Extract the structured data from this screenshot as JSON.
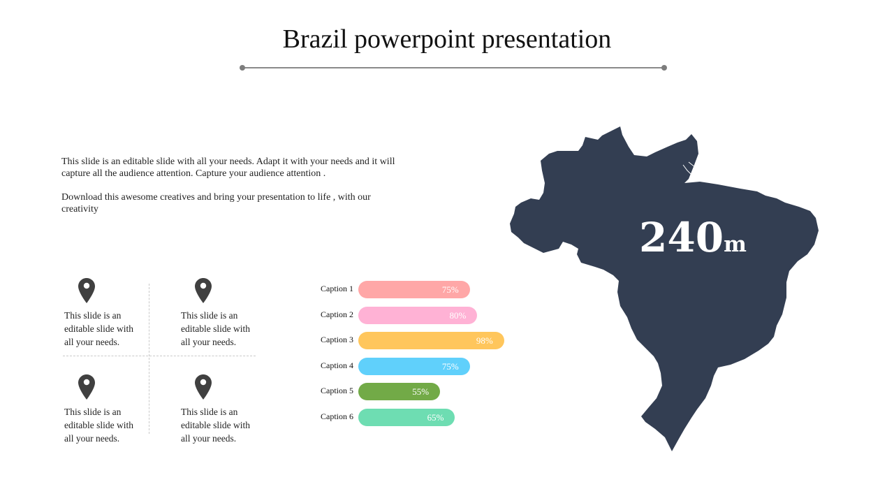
{
  "title": "Brazil powerpoint presentation",
  "intro": {
    "paragraph1": "This slide is an editable slide with all your needs. Adapt it with your needs and it will capture all the audience attention. Capture your audience attention .",
    "paragraph2": "Download this awesome creatives and bring your presentation to life , with our creativity"
  },
  "grid": {
    "items": [
      {
        "icon": "location-pin-icon",
        "text": "This slide is an editable slide with all your needs."
      },
      {
        "icon": "location-pin-icon",
        "text": "This slide is an editable slide with all your needs."
      },
      {
        "icon": "location-pin-icon",
        "text": "This slide is an editable slide with all your needs."
      },
      {
        "icon": "location-pin-icon",
        "text": "This slide is an editable slide with all your needs."
      }
    ],
    "icon_color": "#404040"
  },
  "bars": [
    {
      "caption": "Caption 1",
      "value": 75,
      "label": "75%",
      "color": "#FFA7A7"
    },
    {
      "caption": "Caption 2",
      "value": 80,
      "label": "80%",
      "color": "#FFB2D5"
    },
    {
      "caption": "Caption 3",
      "value": 98,
      "label": "98%",
      "color": "#FFC65C"
    },
    {
      "caption": "Caption 4",
      "value": 75,
      "label": "75%",
      "color": "#60D0FB"
    },
    {
      "caption": "Caption 5",
      "value": 55,
      "label": "55%",
      "color": "#72AA47"
    },
    {
      "caption": "Caption 6",
      "value": 65,
      "label": "65%",
      "color": "#6EDDB2"
    }
  ],
  "map": {
    "icon": "brazil-map",
    "color": "#333E52",
    "stat_number": "240",
    "stat_unit": "m"
  }
}
